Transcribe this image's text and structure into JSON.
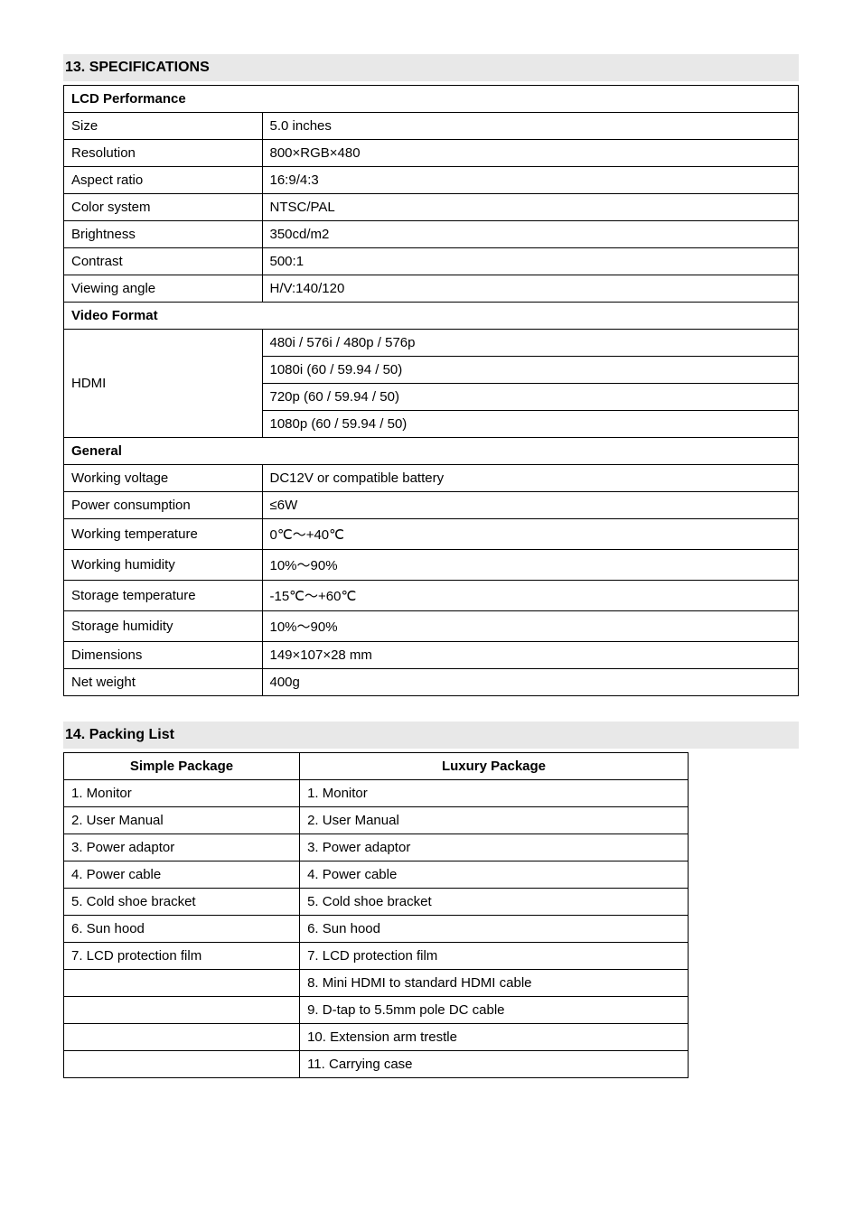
{
  "sections": {
    "specs": {
      "title": "13. SPECIFICATIONS"
    },
    "packing": {
      "title": "14. Packing List"
    }
  },
  "specs": {
    "lcd_header": "LCD Performance",
    "lcd": [
      {
        "label": "Size",
        "value": "5.0 inches"
      },
      {
        "label": "Resolution",
        "value": "800×RGB×480"
      },
      {
        "label": "Aspect ratio",
        "value": "16:9/4:3"
      },
      {
        "label": "Color system",
        "value": "NTSC/PAL"
      },
      {
        "label": "Brightness",
        "value": "350cd/m2"
      },
      {
        "label": "Contrast",
        "value": "500:1"
      },
      {
        "label": "Viewing angle",
        "value": "H/V:140/120"
      }
    ],
    "video_header": "Video Format",
    "hdmi_label": "HDMI",
    "hdmi_values": [
      "480i / 576i / 480p / 576p",
      "1080i (60 / 59.94 / 50)",
      "720p (60 / 59.94 / 50)",
      "1080p (60 / 59.94 / 50)"
    ],
    "general_header": "General",
    "general": [
      {
        "label": "Working voltage",
        "value": "DC12V or compatible battery"
      },
      {
        "label": "Power consumption",
        "value": "≤6W"
      },
      {
        "label": "Working temperature",
        "value": "0℃～+40℃"
      },
      {
        "label": "Working humidity",
        "value": "10%～90%"
      },
      {
        "label": "Storage temperature",
        "value": "-15℃～+60℃"
      },
      {
        "label": "Storage humidity",
        "value": "10%～90%"
      },
      {
        "label": "Dimensions",
        "value": "149×107×28 mm"
      },
      {
        "label": "Net weight",
        "value": "400g"
      }
    ]
  },
  "packing": {
    "columns": [
      "Simple Package",
      "Luxury Package"
    ],
    "rows": [
      [
        "1. Monitor",
        "1. Monitor"
      ],
      [
        "2. User Manual",
        "2. User Manual"
      ],
      [
        "3. Power adaptor",
        "3. Power adaptor"
      ],
      [
        "4. Power cable",
        "4. Power cable"
      ],
      [
        "5. Cold shoe bracket",
        "5. Cold shoe bracket"
      ],
      [
        "6. Sun hood",
        "6. Sun hood"
      ],
      [
        "7. LCD protection film",
        "7. LCD protection film"
      ],
      [
        "",
        "8. Mini HDMI to standard HDMI cable"
      ],
      [
        "",
        "9. D-tap to 5.5mm pole DC cable"
      ],
      [
        "",
        "10. Extension arm trestle"
      ],
      [
        "",
        "11. Carrying case"
      ]
    ]
  }
}
